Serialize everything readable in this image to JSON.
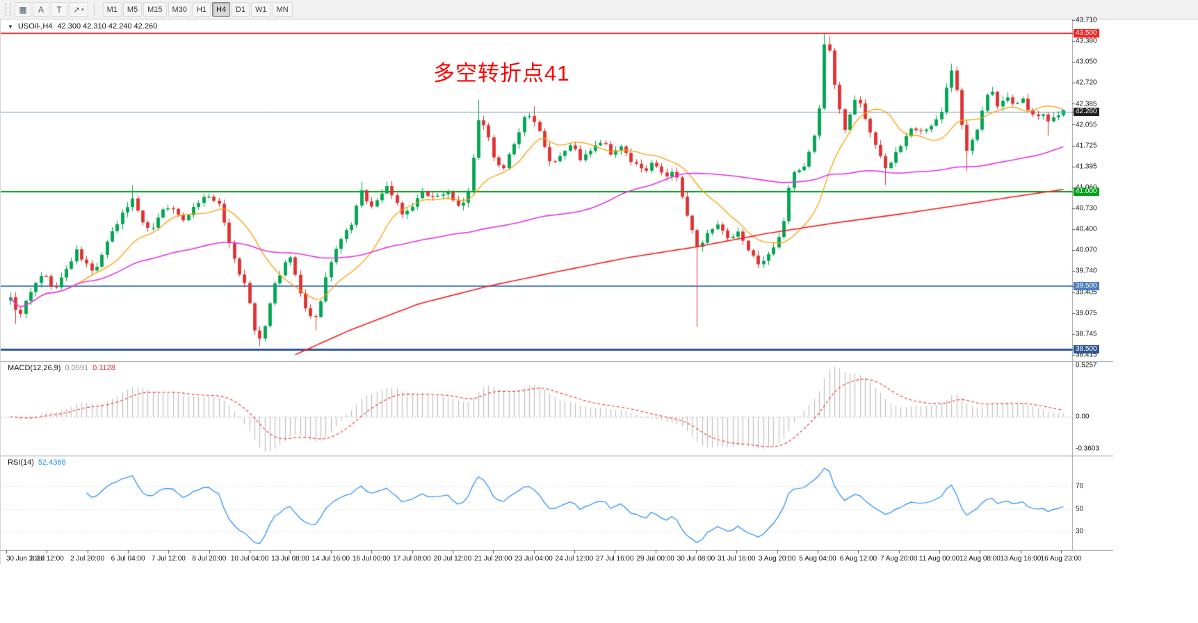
{
  "toolbar": {
    "tools": [
      {
        "name": "chart-list-icon",
        "glyph": "▦"
      },
      {
        "name": "text-label-tool",
        "glyph": "A"
      },
      {
        "name": "text-box-tool",
        "glyph": "T"
      },
      {
        "name": "arrow-tool",
        "glyph": "↗",
        "caret": "▾"
      }
    ],
    "timeframes": [
      {
        "label": "M1"
      },
      {
        "label": "M5"
      },
      {
        "label": "M15"
      },
      {
        "label": "M30"
      },
      {
        "label": "H1"
      },
      {
        "label": "H4",
        "active": true
      },
      {
        "label": "D1"
      },
      {
        "label": "W1"
      },
      {
        "label": "MN"
      }
    ]
  },
  "chart": {
    "symbol_header": {
      "collapse_icon": "▼",
      "title": "USOil-,H4",
      "ohlc": "42.300 42.310 42.240 42.260"
    },
    "annotation": {
      "text": "多空转折点41",
      "color": "#ff0000"
    },
    "last_price_badge": "42.260",
    "price_axis": [
      {
        "text": "43.710",
        "price": 43.71,
        "type": "label"
      },
      {
        "text": "43.500",
        "price": 43.5,
        "type": "badge",
        "bg": "#ff1f1f"
      },
      {
        "text": "43.380",
        "price": 43.38,
        "type": "label"
      },
      {
        "text": "43.050",
        "price": 43.05,
        "type": "label"
      },
      {
        "text": "42.720",
        "price": 42.72,
        "type": "label"
      },
      {
        "text": "42.385",
        "price": 42.385,
        "type": "label"
      },
      {
        "text": "42.260",
        "price": 42.26,
        "type": "badge",
        "bg": "#222222"
      },
      {
        "text": "42.055",
        "price": 42.055,
        "type": "label"
      },
      {
        "text": "41.725",
        "price": 41.725,
        "type": "label"
      },
      {
        "text": "41.395",
        "price": 41.395,
        "type": "label"
      },
      {
        "text": "41.060",
        "price": 41.06,
        "type": "label"
      },
      {
        "text": "41.000",
        "price": 41.0,
        "type": "badge",
        "bg": "#00a018"
      },
      {
        "text": "40.730",
        "price": 40.73,
        "type": "label"
      },
      {
        "text": "40.400",
        "price": 40.4,
        "type": "label"
      },
      {
        "text": "40.070",
        "price": 40.07,
        "type": "label"
      },
      {
        "text": "39.740",
        "price": 39.74,
        "type": "label"
      },
      {
        "text": "39.500",
        "price": 39.5,
        "type": "badge",
        "bg": "#4a7ebb"
      },
      {
        "text": "39.405",
        "price": 39.405,
        "type": "label"
      },
      {
        "text": "39.075",
        "price": 39.075,
        "type": "label"
      },
      {
        "text": "38.745",
        "price": 38.745,
        "type": "label"
      },
      {
        "text": "38.500",
        "price": 38.5,
        "type": "badge",
        "bg": "#2f5597"
      },
      {
        "text": "38.415",
        "price": 38.415,
        "type": "label"
      }
    ],
    "time_axis": [
      "30 Jun 2020",
      "1 Jul 12:00",
      "2 Jul 20:00",
      "6 Jul 04:00",
      "7 Jul 12:00",
      "8 Jul 20:00",
      "10 Jul 04:00",
      "13 Jul 08:00",
      "14 Jul 16:00",
      "16 Jul 00:00",
      "17 Jul 08:00",
      "20 Jul 12:00",
      "21 Jul 20:00",
      "23 Jul 04:00",
      "24 Jul 12:00",
      "27 Jul 16:00",
      "29 Jul 00:00",
      "30 Jul 08:00",
      "31 Jul 16:00",
      "3 Aug 20:00",
      "5 Aug 04:00",
      "6 Aug 12:00",
      "7 Aug 20:00",
      "11 Aug 00:00",
      "12 Aug 08:00",
      "13 Aug 16:00",
      "16 Aug 23:00"
    ]
  },
  "macd": {
    "label": "MACD(12,26,9)",
    "main_value": "0.0591",
    "signal_value": "0.1128",
    "axis": [
      "0.5257",
      "0.00",
      "-0.3603"
    ]
  },
  "rsi": {
    "label": "RSI(14)",
    "value": "52.4368",
    "axis": [
      "70",
      "50",
      "30"
    ]
  },
  "chart_data": {
    "type": "candlestick",
    "symbol": "USOil",
    "timeframe": "H4",
    "bars": 208,
    "seed": 9,
    "last_close": 42.26,
    "price_range": [
      38.4,
      43.72
    ],
    "levels": [
      {
        "price": 43.5,
        "color": "#ff1f1f",
        "width": 2
      },
      {
        "price": 42.26,
        "color": "#7f9db9",
        "width": 1
      },
      {
        "price": 41.0,
        "color": "#00a018",
        "width": 2
      },
      {
        "price": 39.5,
        "color": "#4a7ebb",
        "width": 2
      },
      {
        "price": 38.5,
        "color": "#2f5597",
        "width": 3
      }
    ],
    "colors": {
      "up": "#00a651",
      "down": "#e03131",
      "ma_fast": "#ff9f00",
      "ma_mid": "#e632e6",
      "ma_slow": "#ff1a1a",
      "macd_hist": "#bfbfbf",
      "macd_signal": "#ff2a2a",
      "rsi": "#1f8bff",
      "last_dot": "#00b894"
    },
    "close_path": [
      [
        0,
        39.35
      ],
      [
        0.0066,
        39.0
      ],
      [
        0.0296,
        39.7
      ],
      [
        0.0428,
        39.45
      ],
      [
        0.0625,
        40.05
      ],
      [
        0.0789,
        39.7
      ],
      [
        0.0954,
        40.3
      ],
      [
        0.1151,
        40.9
      ],
      [
        0.1316,
        40.35
      ],
      [
        0.148,
        40.8
      ],
      [
        0.1632,
        40.55
      ],
      [
        0.1763,
        40.8
      ],
      [
        0.1875,
        40.95
      ],
      [
        0.1987,
        40.75
      ],
      [
        0.2079,
        40.2
      ],
      [
        0.2158,
        39.75
      ],
      [
        0.2237,
        39.5
      ],
      [
        0.2316,
        38.8
      ],
      [
        0.2382,
        38.62
      ],
      [
        0.2447,
        39.1
      ],
      [
        0.2513,
        39.55
      ],
      [
        0.2592,
        39.8
      ],
      [
        0.2658,
        39.95
      ],
      [
        0.275,
        39.4
      ],
      [
        0.2829,
        39.0
      ],
      [
        0.2895,
        38.95
      ],
      [
        0.2961,
        39.4
      ],
      [
        0.3039,
        39.9
      ],
      [
        0.3145,
        40.25
      ],
      [
        0.3237,
        40.45
      ],
      [
        0.3329,
        41.0
      ],
      [
        0.3447,
        40.7
      ],
      [
        0.3553,
        41.1
      ],
      [
        0.3651,
        40.85
      ],
      [
        0.3737,
        40.6
      ],
      [
        0.3829,
        40.8
      ],
      [
        0.3928,
        41.0
      ],
      [
        0.4026,
        40.9
      ],
      [
        0.4145,
        41.0
      ],
      [
        0.4263,
        40.75
      ],
      [
        0.4355,
        41.0
      ],
      [
        0.4447,
        42.15
      ],
      [
        0.4526,
        41.9
      ],
      [
        0.4605,
        41.5
      ],
      [
        0.4684,
        41.35
      ],
      [
        0.4776,
        41.75
      ],
      [
        0.4882,
        42.15
      ],
      [
        0.4961,
        42.2
      ],
      [
        0.5039,
        41.9
      ],
      [
        0.5132,
        41.45
      ],
      [
        0.5224,
        41.6
      ],
      [
        0.5316,
        41.75
      ],
      [
        0.5421,
        41.5
      ],
      [
        0.5526,
        41.65
      ],
      [
        0.5618,
        41.8
      ],
      [
        0.5711,
        41.55
      ],
      [
        0.5809,
        41.7
      ],
      [
        0.5908,
        41.45
      ],
      [
        0.6007,
        41.3
      ],
      [
        0.6105,
        41.5
      ],
      [
        0.6204,
        41.2
      ],
      [
        0.6303,
        41.35
      ],
      [
        0.6408,
        40.7
      ],
      [
        0.6513,
        40.15
      ],
      [
        0.6618,
        40.3
      ],
      [
        0.6724,
        40.45
      ],
      [
        0.6822,
        40.2
      ],
      [
        0.6921,
        40.35
      ],
      [
        0.7026,
        40.0
      ],
      [
        0.7118,
        39.85
      ],
      [
        0.7224,
        40.05
      ],
      [
        0.7316,
        40.3
      ],
      [
        0.7421,
        41.35
      ],
      [
        0.7513,
        41.3
      ],
      [
        0.7605,
        41.7
      ],
      [
        0.7671,
        42.1
      ],
      [
        0.7724,
        43.35
      ],
      [
        0.777,
        43.3
      ],
      [
        0.7816,
        42.8
      ],
      [
        0.7868,
        42.3
      ],
      [
        0.7921,
        42.0
      ],
      [
        0.798,
        42.25
      ],
      [
        0.8046,
        42.55
      ],
      [
        0.8112,
        42.2
      ],
      [
        0.8178,
        41.9
      ],
      [
        0.825,
        41.55
      ],
      [
        0.8316,
        41.35
      ],
      [
        0.8395,
        41.6
      ],
      [
        0.848,
        41.8
      ],
      [
        0.8572,
        42.0
      ],
      [
        0.8664,
        41.9
      ],
      [
        0.8757,
        42.1
      ],
      [
        0.8849,
        42.3
      ],
      [
        0.8928,
        42.95
      ],
      [
        0.8993,
        42.55
      ],
      [
        0.9072,
        41.6
      ],
      [
        0.9151,
        41.85
      ],
      [
        0.9237,
        42.35
      ],
      [
        0.9309,
        42.6
      ],
      [
        0.9388,
        42.3
      ],
      [
        0.9461,
        42.55
      ],
      [
        0.9526,
        42.35
      ],
      [
        0.9599,
        42.5
      ],
      [
        0.9664,
        42.3
      ],
      [
        0.973,
        42.15
      ],
      [
        0.9796,
        42.25
      ],
      [
        0.9861,
        42.05
      ],
      [
        0.9928,
        42.2
      ],
      [
        1,
        42.26
      ]
    ],
    "wick_overrides": [
      {
        "t": 0.0066,
        "low": 38.9
      },
      {
        "t": 0.1151,
        "high": 41.1
      },
      {
        "t": 0.2382,
        "low": 38.55
      },
      {
        "t": 0.2895,
        "low": 38.8
      },
      {
        "t": 0.3329,
        "high": 41.15
      },
      {
        "t": 0.4447,
        "high": 42.45
      },
      {
        "t": 0.4961,
        "high": 42.35
      },
      {
        "t": 0.6513,
        "low": 38.85
      },
      {
        "t": 0.7724,
        "high": 43.5
      },
      {
        "t": 0.777,
        "high": 43.45
      },
      {
        "t": 0.8316,
        "low": 41.1
      },
      {
        "t": 0.8928,
        "high": 43.02
      },
      {
        "t": 0.9072,
        "low": 41.32
      },
      {
        "t": 0.9861,
        "low": 41.88
      }
    ],
    "ma_red": [
      [
        0.27,
        38.41
      ],
      [
        0.322,
        38.8
      ],
      [
        0.388,
        39.22
      ],
      [
        0.454,
        39.5
      ],
      [
        0.52,
        39.73
      ],
      [
        0.586,
        39.95
      ],
      [
        0.651,
        40.12
      ],
      [
        0.717,
        40.33
      ],
      [
        0.783,
        40.5
      ],
      [
        0.849,
        40.65
      ],
      [
        0.901,
        40.78
      ],
      [
        0.947,
        40.9
      ],
      [
        1,
        41.03
      ]
    ]
  }
}
